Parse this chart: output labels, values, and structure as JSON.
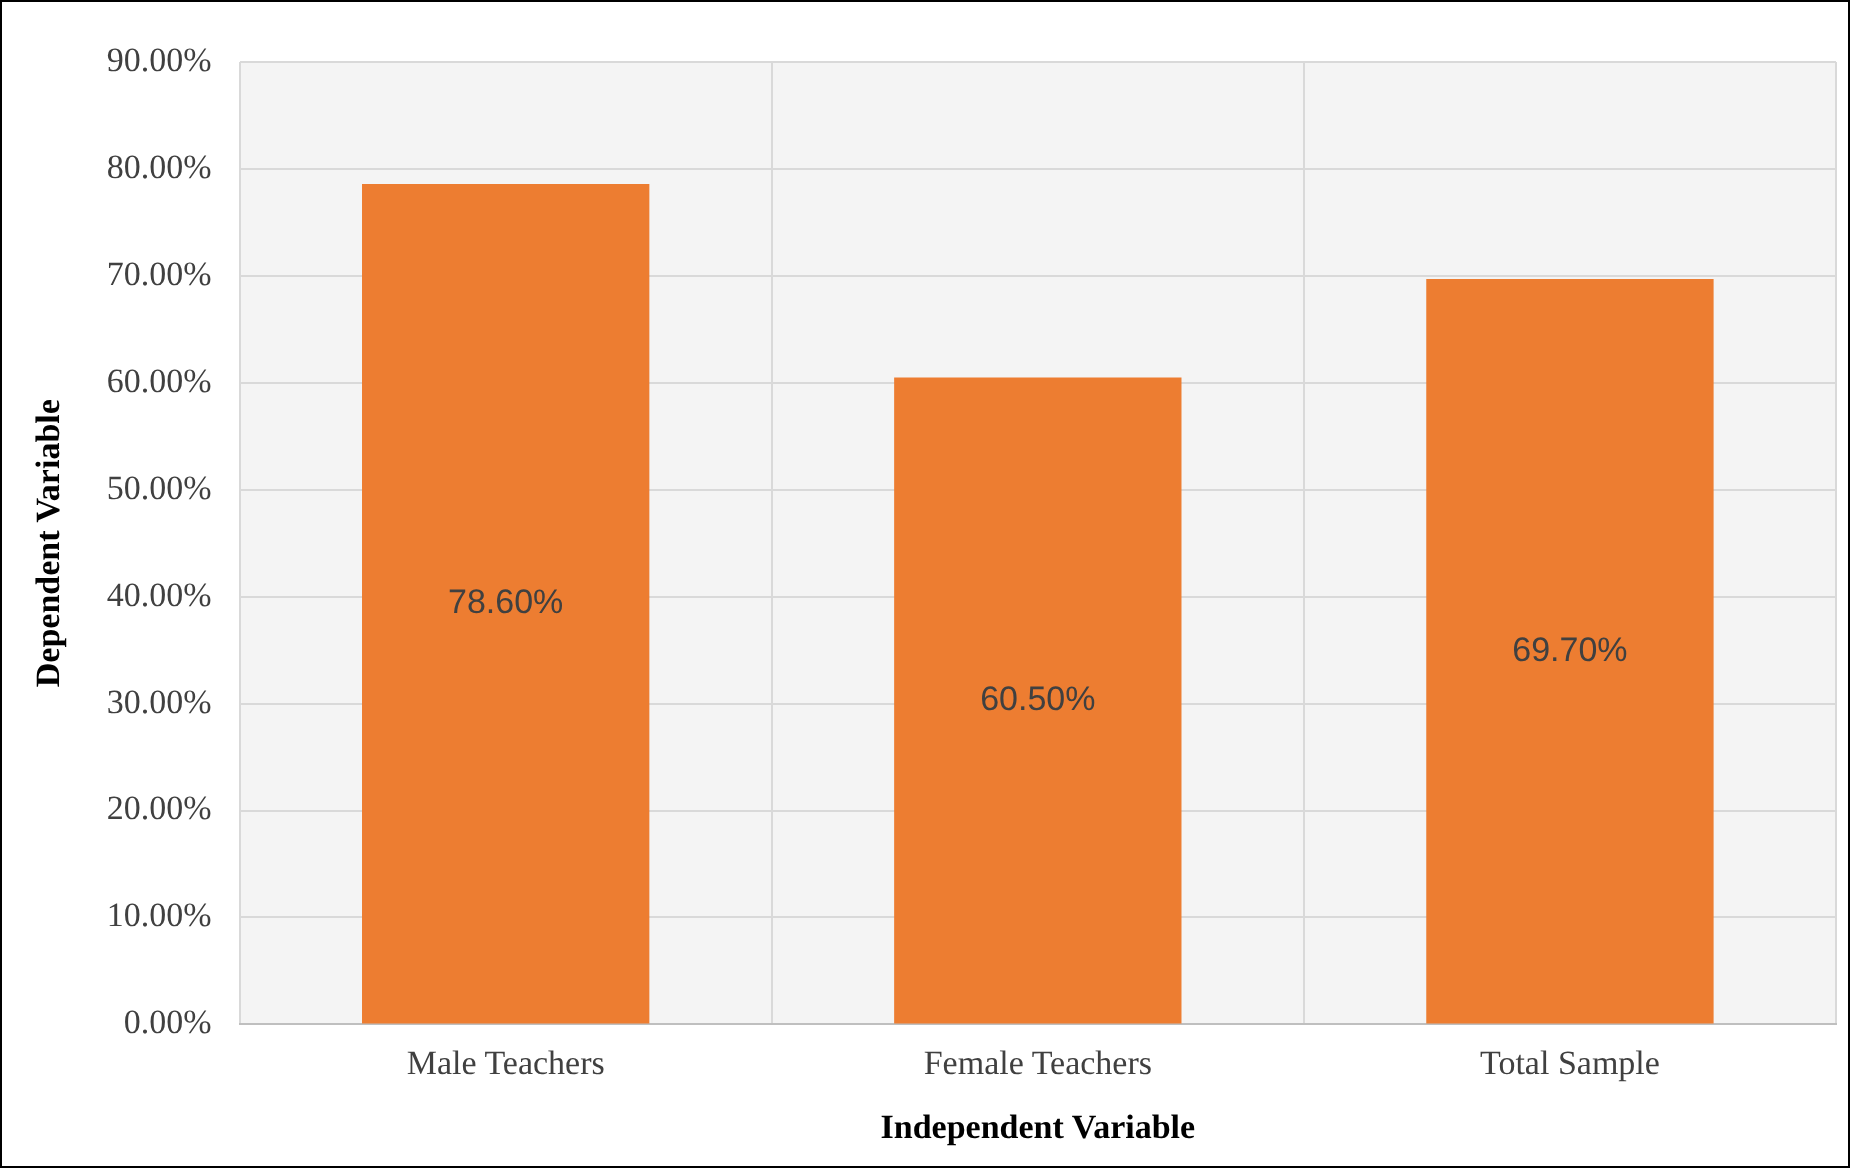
{
  "chart_data": {
    "type": "bar",
    "xlabel": "Independent Variable",
    "ylabel": "Dependent Variable",
    "categories": [
      "Male Teachers",
      "Female Teachers",
      "Total Sample"
    ],
    "series": [
      {
        "color": "#ed7d31",
        "values": [
          78.6,
          60.5,
          69.7
        ],
        "value_labels": [
          "78.60%",
          "60.50%",
          "69.70%"
        ]
      }
    ],
    "ylim": [
      0,
      90
    ],
    "yticks": [
      {
        "value": 0,
        "label": "0.00%"
      },
      {
        "value": 10,
        "label": "10.00%"
      },
      {
        "value": 20,
        "label": "20.00%"
      },
      {
        "value": 30,
        "label": "30.00%"
      },
      {
        "value": 40,
        "label": "40.00%"
      },
      {
        "value": 50,
        "label": "50.00%"
      },
      {
        "value": 60,
        "label": "60.00%"
      },
      {
        "value": 70,
        "label": "70.00%"
      },
      {
        "value": 80,
        "label": "80.00%"
      },
      {
        "value": 90,
        "label": "90.00%"
      }
    ],
    "grid": true,
    "legend": false
  }
}
